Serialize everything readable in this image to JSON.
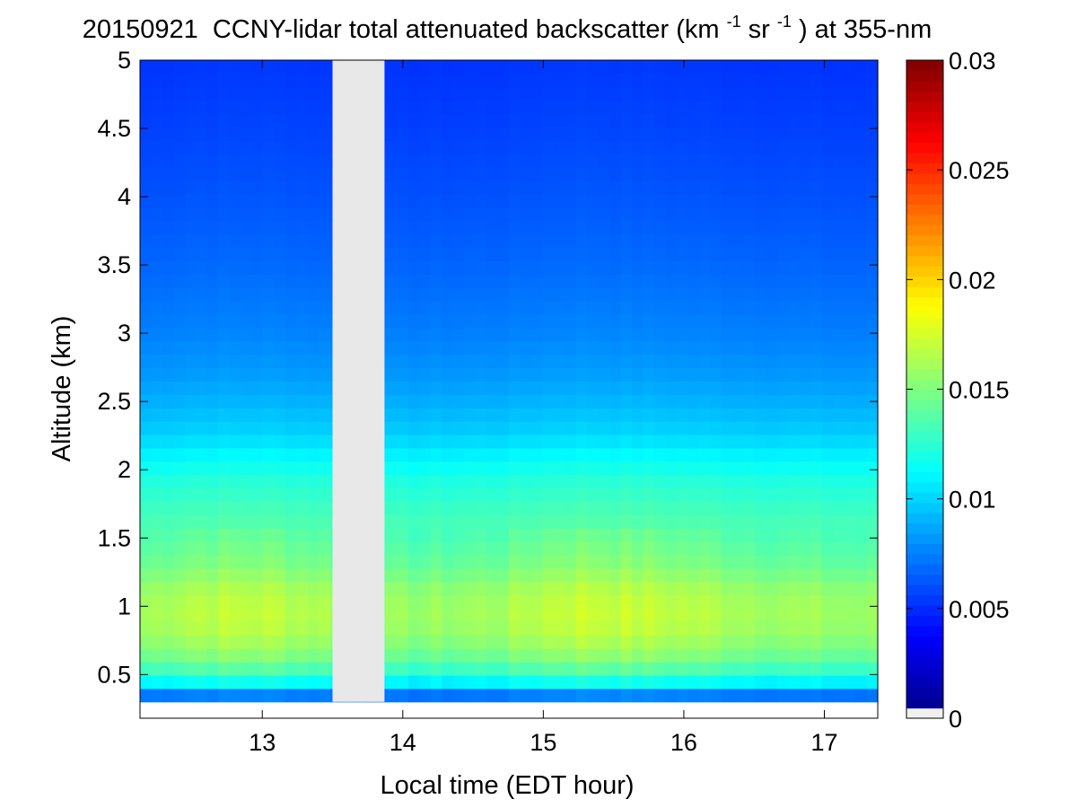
{
  "chart_data": [
    {
      "type": "heatmap",
      "title": {
        "date": "20150921",
        "text": "CCNY-lidar total attenuated backscatter (km",
        "sup1": "-1",
        "mid": "sr",
        "sup2": "-1",
        "tail": ") at 355-nm"
      },
      "xlabel": "Local time (EDT hour)",
      "ylabel": "Altitude (km)",
      "xlim": [
        12.13,
        17.38
      ],
      "ylim": [
        0.18,
        5.0
      ],
      "x_ticks": [
        13,
        14,
        15,
        16,
        17
      ],
      "y_ticks": [
        0.5,
        1,
        1.5,
        2,
        2.5,
        3,
        3.5,
        4,
        4.5,
        5
      ],
      "y_tick_labels": [
        "0.5",
        "1",
        "1.5",
        "2",
        "2.5",
        "3",
        "3.5",
        "4",
        "4.5",
        "5"
      ],
      "data_bottom_altitude": 0.3,
      "missing_data_interval": [
        13.5,
        13.87
      ],
      "missing_color": "#e8e8e8",
      "colormap": "jet",
      "grid": false,
      "profile": {
        "altitudes": [
          0.3,
          0.35,
          0.4,
          0.45,
          0.5,
          0.6,
          0.7,
          0.8,
          0.9,
          1.0,
          1.1,
          1.2,
          1.3,
          1.5,
          1.7,
          1.9,
          2.0,
          2.1,
          2.2,
          2.3,
          2.5,
          2.7,
          3.0,
          3.5,
          4.0,
          4.5,
          5.0
        ],
        "values": [
          0.0055,
          0.0075,
          0.0095,
          0.0115,
          0.0128,
          0.0145,
          0.0155,
          0.0162,
          0.0165,
          0.0165,
          0.0162,
          0.0155,
          0.0148,
          0.014,
          0.0132,
          0.0124,
          0.0118,
          0.0111,
          0.0104,
          0.0098,
          0.009,
          0.0083,
          0.0076,
          0.0068,
          0.0062,
          0.0057,
          0.0053
        ]
      },
      "time_modulation": {
        "times": [
          12.13,
          12.5,
          13.0,
          13.4,
          13.9,
          14.3,
          14.7,
          15.1,
          15.3,
          15.8,
          16.4,
          17.0,
          17.38
        ],
        "factors": [
          0.97,
          1.02,
          1.03,
          1.0,
          0.95,
          0.96,
          0.98,
          1.04,
          1.05,
          1.03,
          0.99,
          0.96,
          0.95
        ]
      },
      "colorbar": {
        "clim": [
          0,
          0.03
        ],
        "ticks": [
          0,
          0.005,
          0.01,
          0.015,
          0.02,
          0.025,
          0.03
        ],
        "tick_labels": [
          "0",
          "0.005",
          "0.01",
          "0.015",
          "0.02",
          "0.025",
          "0.03"
        ]
      }
    }
  ]
}
